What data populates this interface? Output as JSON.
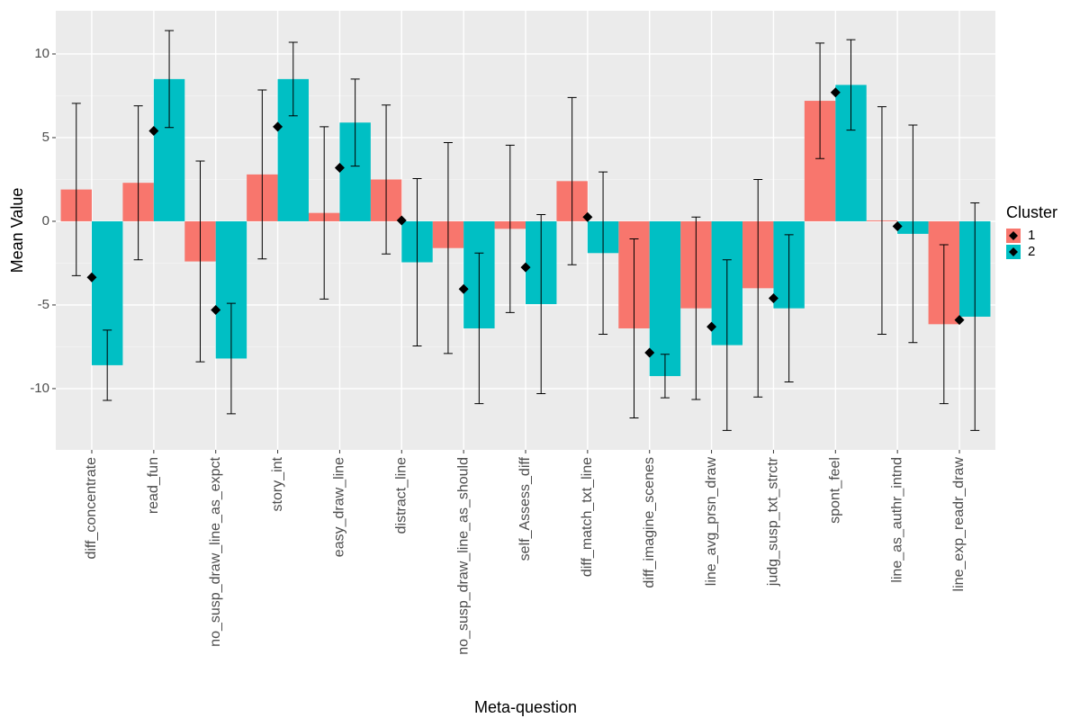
{
  "chart_data": {
    "type": "bar",
    "x_label": "Meta-question",
    "y_label": "Mean Value",
    "legend_title": "Cluster",
    "categories": [
      "diff_concentrate",
      "read_fun",
      "no_susp_draw_line_as_expct",
      "story_int",
      "easy_draw_line",
      "distract_line",
      "no_susp_draw_line_as_should",
      "self_Assess_diff",
      "diff_match_txt_line",
      "diff_imagine_scenes",
      "line_avg_prsn_draw",
      "judg_susp_txt_strctr",
      "spont_feel",
      "line_as_authr_intnd",
      "line_exp_readr_draw"
    ],
    "series": [
      {
        "name": "1",
        "color": "#f8766d",
        "values": [
          1.9,
          2.3,
          -2.4,
          2.8,
          0.5,
          2.5,
          -1.6,
          -0.45,
          2.4,
          -6.4,
          -5.2,
          -4.0,
          7.2,
          0.05,
          -6.15
        ],
        "errors": [
          5.15,
          4.6,
          6.0,
          5.05,
          5.15,
          4.45,
          6.3,
          5.0,
          5.0,
          5.35,
          5.45,
          6.5,
          3.45,
          6.8,
          4.75
        ]
      },
      {
        "name": "2",
        "color": "#00bfc4",
        "values": [
          -8.6,
          8.5,
          -8.2,
          8.5,
          5.9,
          -2.45,
          -6.4,
          -4.95,
          -1.9,
          -9.25,
          -7.4,
          -5.2,
          8.15,
          -0.75,
          -5.7
        ],
        "errors": [
          2.1,
          2.9,
          3.3,
          2.2,
          2.6,
          5.0,
          4.5,
          5.35,
          4.85,
          1.3,
          5.1,
          4.4,
          2.7,
          6.5,
          6.8
        ]
      }
    ],
    "points": {
      "color": "#000000",
      "values": [
        -3.35,
        5.4,
        -5.3,
        5.65,
        3.2,
        0.05,
        -4.05,
        -2.75,
        0.25,
        -7.85,
        -6.3,
        -4.6,
        7.7,
        -0.3,
        -5.9
      ]
    },
    "ylim": [
      -13.66,
      12.58
    ],
    "yticks": [
      -10,
      -5,
      0,
      5,
      10
    ],
    "grid": true,
    "legend_position": "right"
  }
}
